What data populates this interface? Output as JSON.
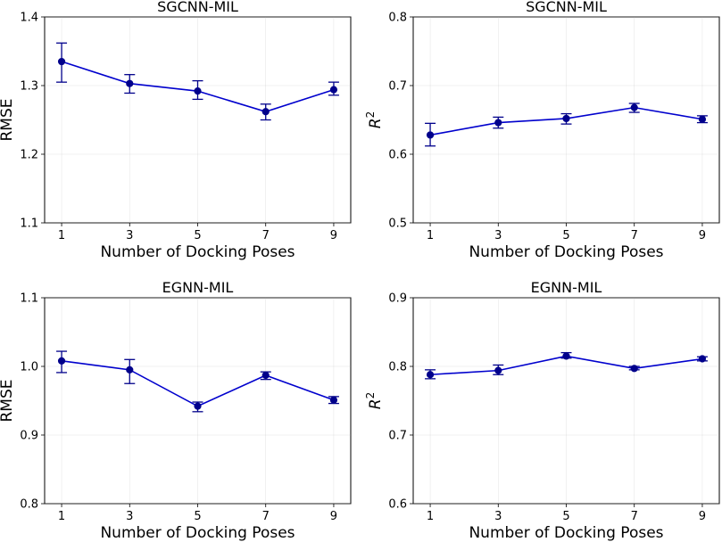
{
  "chart_data": [
    {
      "type": "line",
      "title": "SGCNN-MIL",
      "xlabel": "Number of Docking Poses",
      "ylabel": "RMSE",
      "ylabel_sup": "",
      "x": [
        1,
        3,
        5,
        7,
        9
      ],
      "xticks": [
        "1",
        "3",
        "5",
        "7",
        "9"
      ],
      "values": [
        1.335,
        1.303,
        1.292,
        1.262,
        1.294
      ],
      "err_low": [
        1.305,
        1.289,
        1.28,
        1.25,
        1.286
      ],
      "err_high": [
        1.362,
        1.316,
        1.307,
        1.273,
        1.305
      ],
      "ylim": [
        1.1,
        1.4
      ],
      "yticks": [
        "1.1",
        "1.2",
        "1.3",
        "1.4"
      ],
      "grid": true
    },
    {
      "type": "line",
      "title": "SGCNN-MIL",
      "xlabel": "Number of Docking Poses",
      "ylabel": "R",
      "ylabel_sup": "2",
      "x": [
        1,
        3,
        5,
        7,
        9
      ],
      "xticks": [
        "1",
        "3",
        "5",
        "7",
        "9"
      ],
      "values": [
        0.628,
        0.646,
        0.652,
        0.668,
        0.651
      ],
      "err_low": [
        0.612,
        0.638,
        0.644,
        0.661,
        0.646
      ],
      "err_high": [
        0.645,
        0.654,
        0.659,
        0.674,
        0.656
      ],
      "ylim": [
        0.5,
        0.8
      ],
      "yticks": [
        "0.5",
        "0.6",
        "0.7",
        "0.8"
      ],
      "grid": true
    },
    {
      "type": "line",
      "title": "EGNN-MIL",
      "xlabel": "Number of Docking Poses",
      "ylabel": "RMSE",
      "ylabel_sup": "",
      "x": [
        1,
        3,
        5,
        7,
        9
      ],
      "xticks": [
        "1",
        "3",
        "5",
        "7",
        "9"
      ],
      "values": [
        1.008,
        0.995,
        0.942,
        0.987,
        0.951
      ],
      "err_low": [
        0.991,
        0.975,
        0.934,
        0.981,
        0.946
      ],
      "err_high": [
        1.022,
        1.01,
        0.948,
        0.992,
        0.956
      ],
      "ylim": [
        0.8,
        1.1
      ],
      "yticks": [
        "0.8",
        "0.9",
        "1.0",
        "1.1"
      ],
      "grid": true
    },
    {
      "type": "line",
      "title": "EGNN-MIL",
      "xlabel": "Number of Docking Poses",
      "ylabel": "R",
      "ylabel_sup": "2",
      "x": [
        1,
        3,
        5,
        7,
        9
      ],
      "xticks": [
        "1",
        "3",
        "5",
        "7",
        "9"
      ],
      "values": [
        0.788,
        0.794,
        0.815,
        0.797,
        0.811
      ],
      "err_low": [
        0.782,
        0.788,
        0.812,
        0.795,
        0.808
      ],
      "err_high": [
        0.795,
        0.802,
        0.82,
        0.8,
        0.814
      ],
      "ylim": [
        0.6,
        0.9
      ],
      "yticks": [
        "0.6",
        "0.7",
        "0.8",
        "0.9"
      ],
      "grid": true
    }
  ],
  "colors": {
    "line": "#0000cd",
    "marker": "#00008b",
    "errorbar": "#00008b"
  }
}
